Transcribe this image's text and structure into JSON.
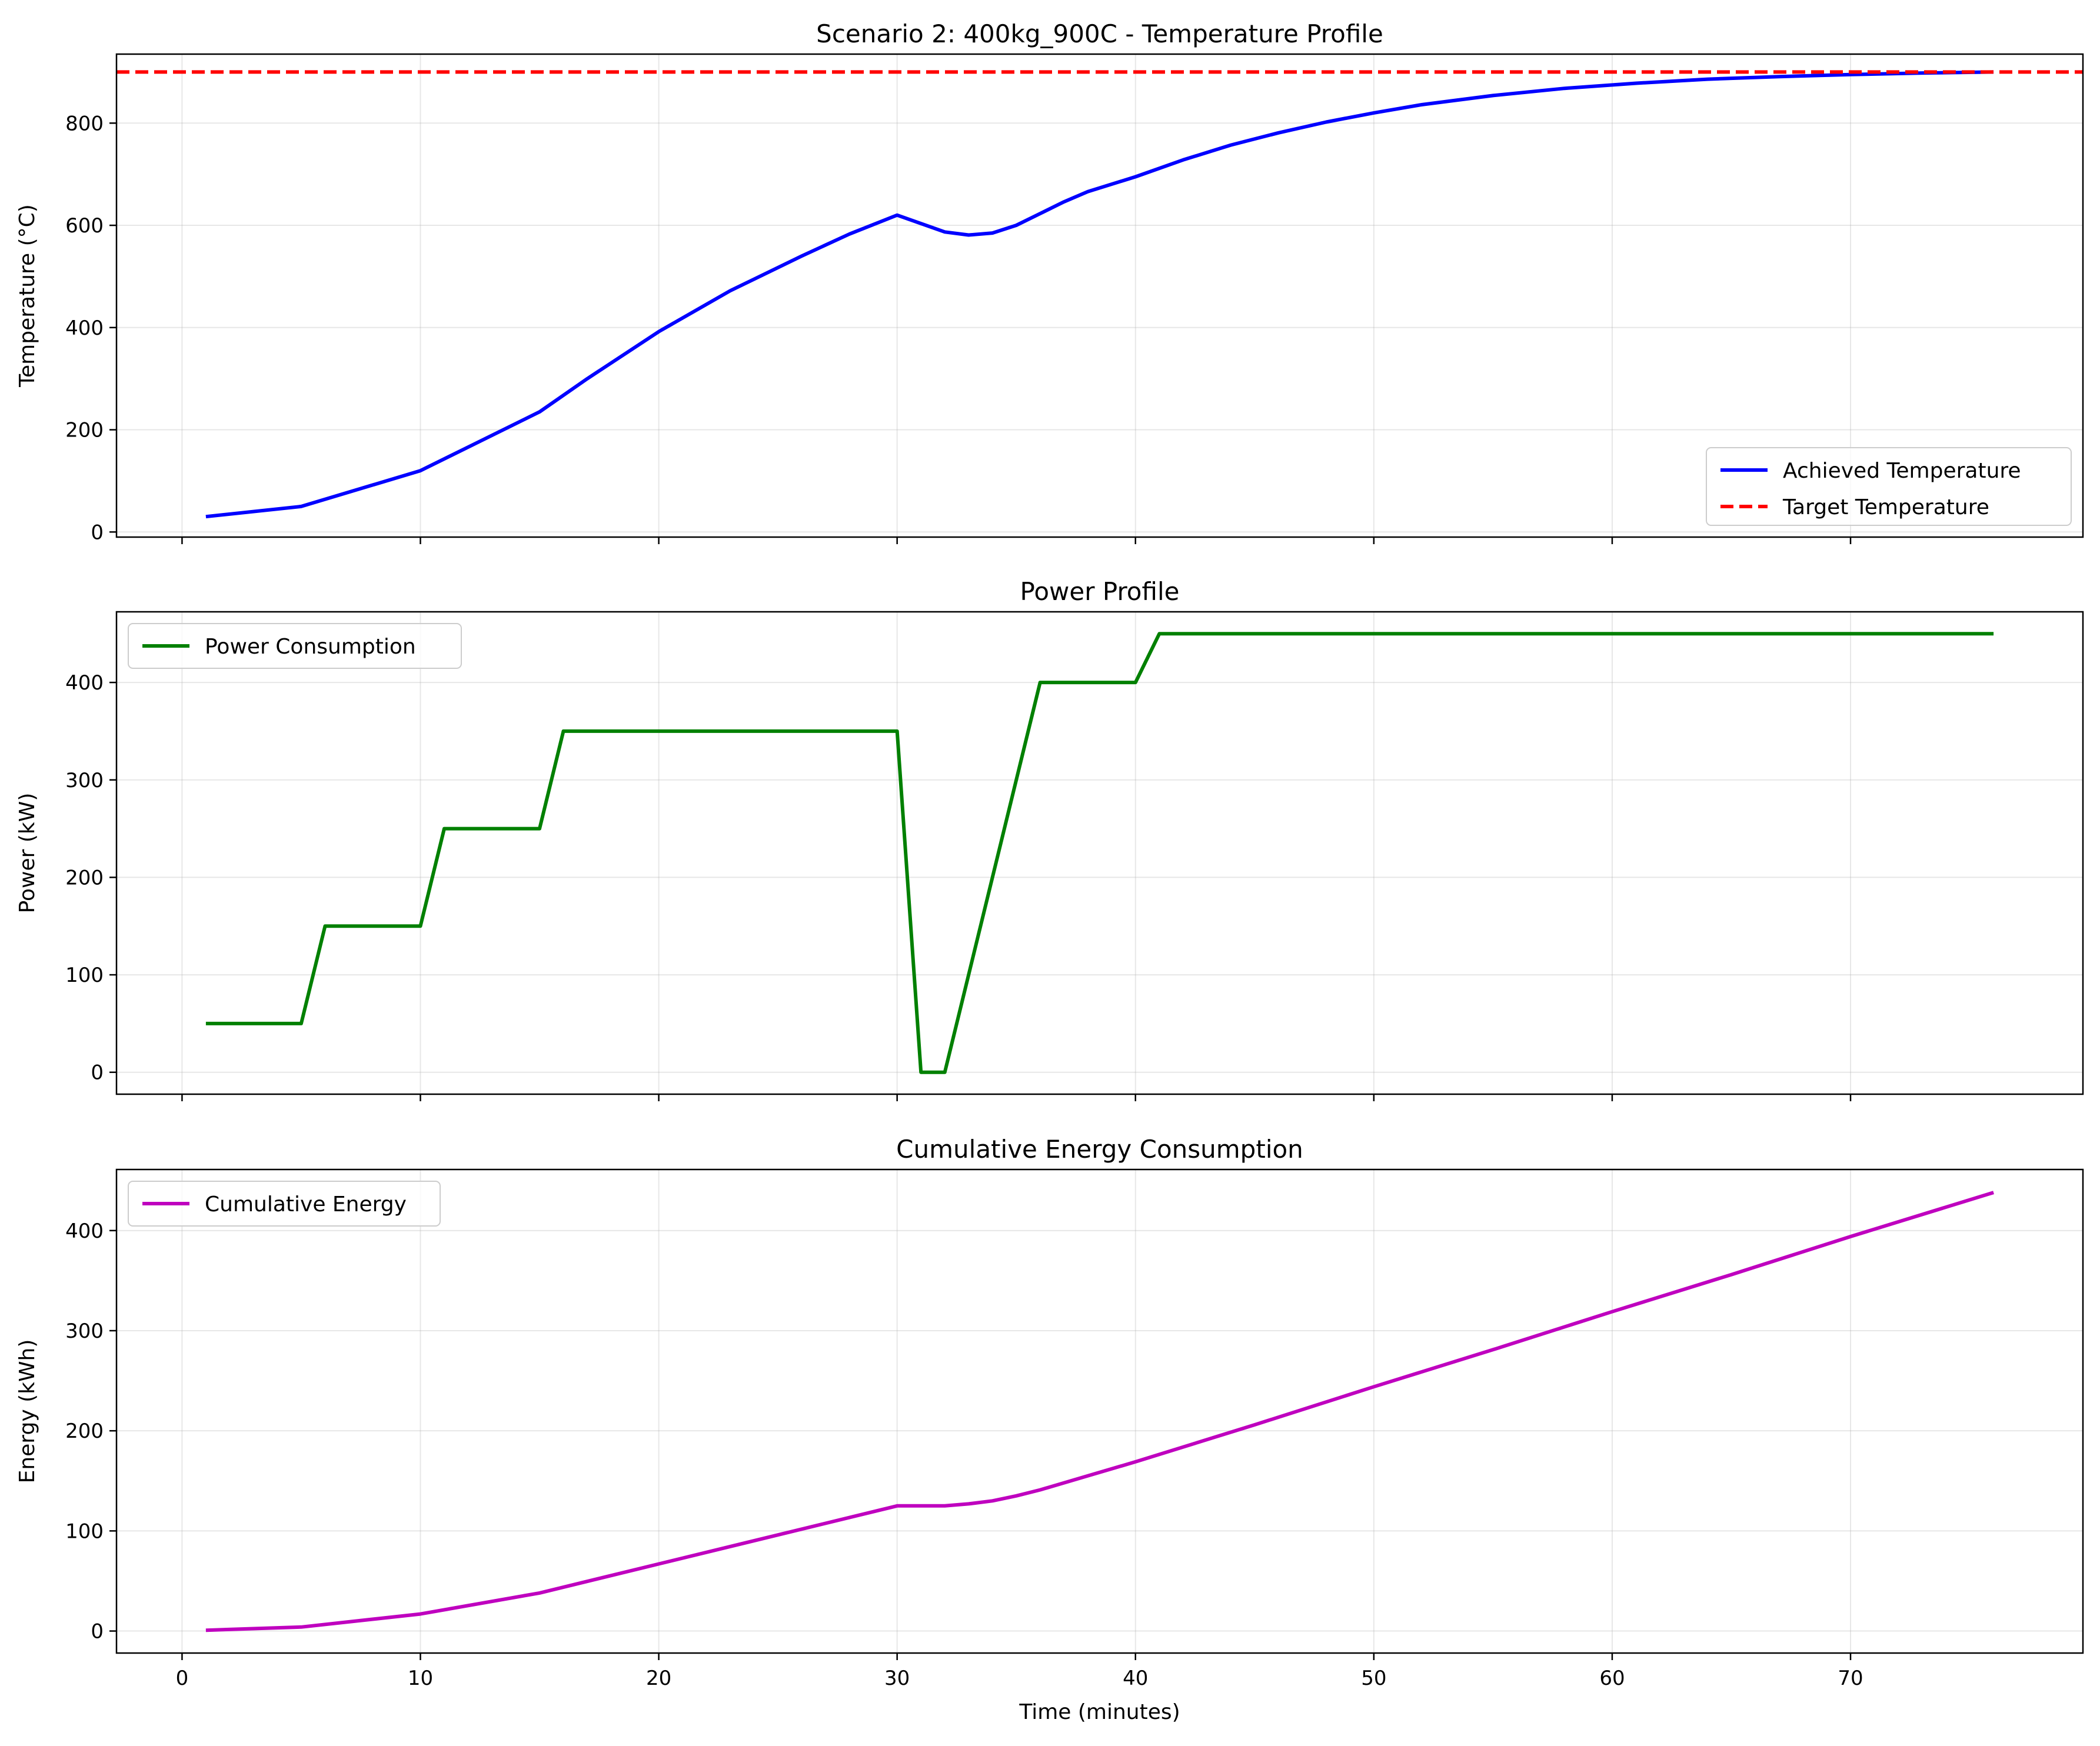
{
  "chart_data": [
    {
      "type": "line",
      "title": "Scenario 2: 400kg_900C - Temperature Profile",
      "xlabel": "",
      "ylabel": "Temperature (°C)",
      "xlim": [
        -2.75,
        79.75
      ],
      "ylim": [
        -10,
        935
      ],
      "xticks": [
        0,
        10,
        20,
        30,
        40,
        50,
        60,
        70
      ],
      "xtick_labels_visible": false,
      "yticks": [
        0,
        200,
        400,
        600,
        800
      ],
      "grid": true,
      "legend_position": "lower-right",
      "series": [
        {
          "name": "Achieved Temperature",
          "color": "#0000ff",
          "style": "solid",
          "x": [
            1,
            5,
            10,
            15,
            17,
            20,
            23,
            26,
            28,
            30,
            32,
            33,
            34,
            35,
            36,
            37,
            38,
            40,
            42,
            44,
            46,
            48,
            50,
            52,
            55,
            58,
            61,
            64,
            67,
            70,
            73,
            76
          ],
          "y": [
            30,
            50,
            120,
            235,
            300,
            392,
            472,
            540,
            583,
            620,
            587,
            581,
            585,
            600,
            623,
            646,
            666,
            695,
            728,
            757,
            781,
            802,
            820,
            836,
            854,
            868,
            878,
            886,
            891,
            895,
            898,
            900
          ]
        },
        {
          "name": "Target Temperature",
          "color": "#ff0000",
          "style": "dashed",
          "x": [
            -2.75,
            79.75
          ],
          "y": [
            900,
            900
          ]
        }
      ]
    },
    {
      "type": "line",
      "title": "Power Profile",
      "xlabel": "",
      "ylabel": "Power (kW)",
      "xlim": [
        -2.75,
        79.75
      ],
      "ylim": [
        -22.5,
        472.5
      ],
      "xticks": [
        0,
        10,
        20,
        30,
        40,
        50,
        60,
        70
      ],
      "xtick_labels_visible": false,
      "yticks": [
        0,
        100,
        200,
        300,
        400
      ],
      "grid": true,
      "legend_position": "upper-left",
      "series": [
        {
          "name": "Power Consumption",
          "color": "#008000",
          "style": "solid",
          "x": [
            1,
            5,
            6,
            10,
            11,
            15,
            16,
            30,
            31,
            32,
            36,
            40,
            41,
            76
          ],
          "y": [
            50,
            50,
            150,
            150,
            250,
            250,
            350,
            350,
            0,
            0,
            400,
            400,
            450,
            450
          ]
        }
      ]
    },
    {
      "type": "line",
      "title": "Cumulative Energy Consumption",
      "xlabel": "Time (minutes)",
      "ylabel": "Energy (kWh)",
      "xlim": [
        -2.75,
        79.75
      ],
      "ylim": [
        -22,
        461
      ],
      "xticks": [
        0,
        10,
        20,
        30,
        40,
        50,
        60,
        70
      ],
      "xtick_labels_visible": true,
      "yticks": [
        0,
        100,
        200,
        300,
        400
      ],
      "grid": true,
      "legend_position": "upper-left",
      "series": [
        {
          "name": "Cumulative Energy",
          "color": "#bf00bf",
          "style": "solid",
          "x": [
            1,
            5,
            10,
            15,
            20,
            25,
            30,
            31,
            32,
            33,
            34,
            35,
            36,
            38,
            40,
            45,
            50,
            55,
            60,
            65,
            70,
            76
          ],
          "y": [
            0.8,
            4,
            17,
            38,
            67,
            96,
            125,
            125,
            125,
            127,
            130,
            135,
            141,
            155,
            169,
            206,
            244,
            281,
            319,
            356,
            394,
            438
          ]
        }
      ]
    }
  ]
}
